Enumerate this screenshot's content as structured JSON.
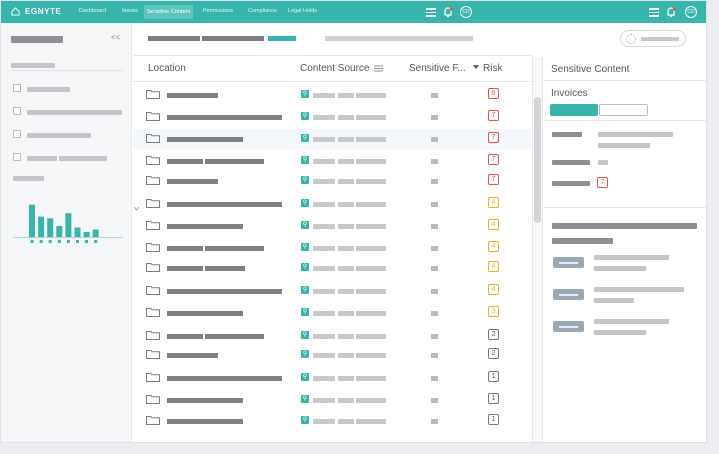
{
  "nav": {
    "brand": "EGNYTE",
    "items": [
      "Dashboard",
      "Issues",
      "Sensitive Content",
      "Permissions",
      "Compliance",
      "Legal Holds"
    ],
    "active_index": 2,
    "icons": [
      "menu-icon",
      "bell-icon",
      "user-avatar-icon"
    ],
    "avatar_initials": "CD",
    "brand_color": "#37b5ad"
  },
  "left_panel": {
    "collapse_label": "<<",
    "chart_bars": [
      0.95,
      0.6,
      0.55,
      0.32,
      0.7,
      0.28,
      0.15,
      0.22
    ]
  },
  "table": {
    "columns": [
      "Location",
      "Content Source",
      "Sensitive F...",
      "Risk"
    ],
    "rows": [
      {
        "risk": "8",
        "level": "r"
      },
      {
        "risk": "7",
        "level": "r"
      },
      {
        "risk": "7",
        "level": "r"
      },
      {
        "risk": "7",
        "level": "r"
      },
      {
        "risk": "7",
        "level": "r"
      },
      {
        "risk": "4",
        "level": "y"
      },
      {
        "risk": "4",
        "level": "y"
      },
      {
        "risk": "4",
        "level": "y"
      },
      {
        "risk": "4",
        "level": "y"
      },
      {
        "risk": "4",
        "level": "y"
      },
      {
        "risk": "3",
        "level": "y"
      },
      {
        "risk": "2",
        "level": "g"
      },
      {
        "risk": "2",
        "level": "g"
      },
      {
        "risk": "1",
        "level": "g"
      },
      {
        "risk": "1",
        "level": "g"
      },
      {
        "risk": "1",
        "level": "g"
      }
    ]
  },
  "right_panel": {
    "title": "Sensitive Content",
    "subtitle": "Invoices",
    "risk_value": "7"
  }
}
